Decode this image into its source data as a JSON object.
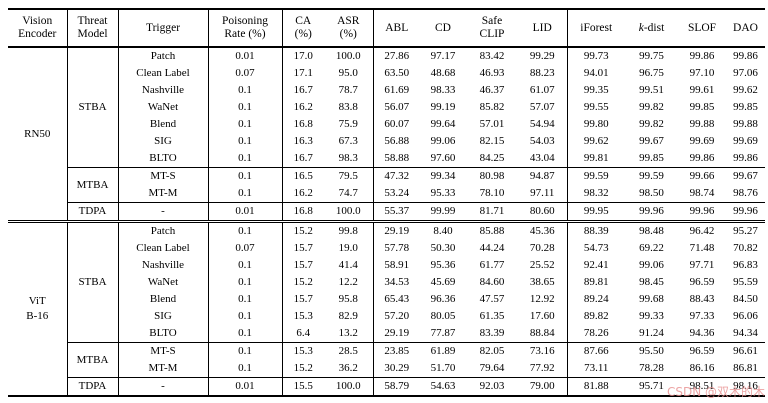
{
  "table": {
    "headers": [
      {
        "key": "vision-encoder",
        "label": "Vision\nEncoder"
      },
      {
        "key": "threat-model",
        "label": "Threat\nModel"
      },
      {
        "key": "trigger",
        "label": "Trigger"
      },
      {
        "key": "poisoning-rate",
        "label": "Poisoning\nRate (%)"
      },
      {
        "key": "ca",
        "label": "CA\n(%)"
      },
      {
        "key": "asr",
        "label": "ASR\n(%)"
      },
      {
        "key": "abl",
        "label": "ABL"
      },
      {
        "key": "cd",
        "label": "CD"
      },
      {
        "key": "safe-clip",
        "label": "Safe\nCLIP"
      },
      {
        "key": "lid",
        "label": "LID"
      },
      {
        "key": "iforest",
        "label": "iForest"
      },
      {
        "key": "k-dist",
        "label": "k-dist",
        "italic_first": true
      },
      {
        "key": "slof",
        "label": "SLOF"
      },
      {
        "key": "dao",
        "label": "DAO"
      }
    ],
    "value_keys": [
      "poisoning-rate",
      "ca",
      "asr",
      "abl",
      "cd",
      "safe-clip",
      "lid",
      "iforest",
      "k-dist",
      "slof",
      "dao"
    ],
    "encoders": [
      {
        "name": "RN50",
        "groups": [
          {
            "threat": "STBA",
            "rows": [
              {
                "trigger": "Patch",
                "values": [
                  "0.01",
                  "17.0",
                  "100.0",
                  "27.86",
                  "97.17",
                  "83.42",
                  "99.29",
                  "99.73",
                  "99.75",
                  "99.86",
                  "99.86"
                ],
                "bold": [
                  9,
                  10
                ]
              },
              {
                "trigger": "Clean Label",
                "values": [
                  "0.07",
                  "17.1",
                  "95.0",
                  "63.50",
                  "48.68",
                  "46.93",
                  "88.23",
                  "94.01",
                  "96.75",
                  "97.10",
                  "97.06"
                ],
                "bold": [
                  9
                ]
              },
              {
                "trigger": "Nashville",
                "values": [
                  "0.1",
                  "16.7",
                  "78.7",
                  "61.69",
                  "98.33",
                  "46.37",
                  "61.07",
                  "99.35",
                  "99.51",
                  "99.61",
                  "99.62"
                ],
                "bold": [
                  10
                ]
              },
              {
                "trigger": "WaNet",
                "values": [
                  "0.1",
                  "16.2",
                  "83.8",
                  "56.07",
                  "99.19",
                  "85.82",
                  "57.07",
                  "99.55",
                  "99.82",
                  "99.85",
                  "99.85"
                ],
                "bold": [
                  9,
                  10
                ]
              },
              {
                "trigger": "Blend",
                "values": [
                  "0.1",
                  "16.8",
                  "75.9",
                  "60.07",
                  "99.64",
                  "57.01",
                  "54.94",
                  "99.80",
                  "99.82",
                  "99.88",
                  "99.88"
                ],
                "bold": [
                  9,
                  10
                ]
              },
              {
                "trigger": "SIG",
                "values": [
                  "0.1",
                  "16.3",
                  "67.3",
                  "56.88",
                  "99.06",
                  "82.15",
                  "54.03",
                  "99.62",
                  "99.67",
                  "99.69",
                  "99.69"
                ],
                "bold": [
                  9,
                  10
                ]
              },
              {
                "trigger": "BLTO",
                "values": [
                  "0.1",
                  "16.7",
                  "98.3",
                  "58.88",
                  "97.60",
                  "84.25",
                  "43.04",
                  "99.81",
                  "99.85",
                  "99.86",
                  "99.86"
                ],
                "bold": [
                  9,
                  10
                ]
              }
            ]
          },
          {
            "threat": "MTBA",
            "rows": [
              {
                "trigger": "MT-S",
                "values": [
                  "0.1",
                  "16.5",
                  "79.5",
                  "47.32",
                  "99.34",
                  "80.98",
                  "94.87",
                  "99.59",
                  "99.59",
                  "99.66",
                  "99.67"
                ],
                "bold": [
                  10
                ]
              },
              {
                "trigger": "MT-M",
                "values": [
                  "0.1",
                  "16.2",
                  "74.7",
                  "53.24",
                  "95.33",
                  "78.10",
                  "97.11",
                  "98.32",
                  "98.50",
                  "98.74",
                  "98.76"
                ],
                "bold": [
                  10
                ]
              }
            ]
          },
          {
            "threat": "TDPA",
            "rows": [
              {
                "trigger": "-",
                "values": [
                  "0.01",
                  "16.8",
                  "100.0",
                  "55.37",
                  "99.99",
                  "81.71",
                  "80.60",
                  "99.95",
                  "99.96",
                  "99.96",
                  "99.96"
                ],
                "bold": [
                  4
                ]
              }
            ]
          }
        ]
      },
      {
        "name": "ViT\nB-16",
        "groups": [
          {
            "threat": "STBA",
            "rows": [
              {
                "trigger": "Patch",
                "values": [
                  "0.1",
                  "15.2",
                  "99.8",
                  "29.19",
                  "8.40",
                  "85.88",
                  "45.36",
                  "88.39",
                  "98.48",
                  "96.42",
                  "95.27"
                ],
                "bold": [
                  8
                ]
              },
              {
                "trigger": "Clean Label",
                "values": [
                  "0.07",
                  "15.7",
                  "19.0",
                  "57.78",
                  "50.30",
                  "44.24",
                  "70.28",
                  "54.73",
                  "69.22",
                  "71.48",
                  "70.82"
                ],
                "bold": [
                  9
                ]
              },
              {
                "trigger": "Nashville",
                "values": [
                  "0.1",
                  "15.7",
                  "41.4",
                  "58.91",
                  "95.36",
                  "61.77",
                  "25.52",
                  "92.41",
                  "99.06",
                  "97.71",
                  "96.83"
                ],
                "bold": [
                  8
                ]
              },
              {
                "trigger": "WaNet",
                "values": [
                  "0.1",
                  "15.2",
                  "12.2",
                  "34.53",
                  "45.69",
                  "84.60",
                  "38.65",
                  "89.81",
                  "98.45",
                  "96.59",
                  "95.59"
                ],
                "bold": [
                  8
                ]
              },
              {
                "trigger": "Blend",
                "values": [
                  "0.1",
                  "15.7",
                  "95.8",
                  "65.43",
                  "96.36",
                  "47.57",
                  "12.92",
                  "89.24",
                  "99.68",
                  "88.43",
                  "84.50"
                ],
                "bold": [
                  8
                ]
              },
              {
                "trigger": "SIG",
                "values": [
                  "0.1",
                  "15.3",
                  "82.9",
                  "57.20",
                  "80.05",
                  "61.35",
                  "17.60",
                  "89.82",
                  "99.33",
                  "97.33",
                  "96.06"
                ],
                "bold": [
                  8
                ]
              },
              {
                "trigger": "BLTO",
                "values": [
                  "0.1",
                  "6.4",
                  "13.2",
                  "29.19",
                  "77.87",
                  "83.39",
                  "88.84",
                  "78.26",
                  "91.24",
                  "94.36",
                  "94.34"
                ],
                "bold": [
                  9
                ]
              }
            ]
          },
          {
            "threat": "MTBA",
            "rows": [
              {
                "trigger": "MT-S",
                "values": [
                  "0.1",
                  "15.3",
                  "28.5",
                  "23.85",
                  "61.89",
                  "82.05",
                  "73.16",
                  "87.66",
                  "95.50",
                  "96.59",
                  "96.61"
                ],
                "bold": [
                  10
                ]
              },
              {
                "trigger": "MT-M",
                "values": [
                  "0.1",
                  "15.2",
                  "36.2",
                  "30.29",
                  "51.70",
                  "79.64",
                  "77.92",
                  "73.11",
                  "78.28",
                  "86.16",
                  "86.81"
                ],
                "bold": [
                  10
                ]
              }
            ]
          },
          {
            "threat": "TDPA",
            "rows": [
              {
                "trigger": "-",
                "values": [
                  "0.01",
                  "15.5",
                  "100.0",
                  "58.79",
                  "54.63",
                  "92.03",
                  "79.00",
                  "81.88",
                  "95.71",
                  "98.51",
                  "98.16"
                ],
                "bold": [
                  9
                ]
              }
            ]
          }
        ]
      }
    ]
  },
  "watermark": {
    "text": "CSDN @双木的木",
    "color": "#e88e8e"
  }
}
